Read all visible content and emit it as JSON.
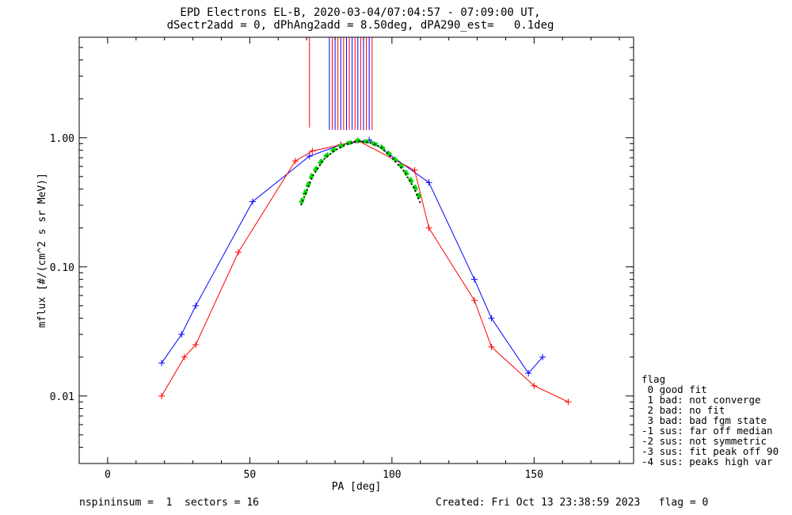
{
  "chart_data": {
    "type": "scatter",
    "title": "EPD Electrons EL-B, 2020-03-04/07:04:57 - 07:09:00 UT,",
    "subtitle": "dSectr2add = 0, dPhAng2add = 8.50deg, dPA290_est=   0.1deg",
    "xlabel": "PA [deg]",
    "ylabel": "mflux [#/(cm^2 s sr MeV)]",
    "xlim": [
      -10,
      185
    ],
    "ylim": [
      0.003,
      6.0
    ],
    "yscale": "log",
    "x_ticks": [
      0,
      50,
      100,
      150
    ],
    "x_tick_labels": [
      "0",
      "50",
      "100",
      "150"
    ],
    "y_ticks": [
      0.01,
      0.1,
      1.0
    ],
    "y_tick_labels": [
      "0.01",
      "0.10",
      "1.00"
    ],
    "grid": false,
    "legend_position": "bottom-right outside",
    "series": [
      {
        "color": "#0000ff",
        "x": [
          19,
          26,
          31,
          51,
          71,
          82,
          92,
          113,
          129,
          135,
          148,
          153
        ],
        "y": [
          0.018,
          0.03,
          0.05,
          0.32,
          0.72,
          0.88,
          0.96,
          0.45,
          0.08,
          0.04,
          0.015,
          0.02
        ]
      },
      {
        "color": "#ff0000",
        "x": [
          19,
          27,
          31,
          46,
          66,
          72,
          82,
          88,
          108,
          113,
          129,
          135,
          150,
          162
        ],
        "y": [
          0.01,
          0.02,
          0.025,
          0.13,
          0.66,
          0.79,
          0.88,
          0.95,
          0.56,
          0.2,
          0.055,
          0.024,
          0.012,
          0.009
        ]
      }
    ],
    "fit_curves": [
      {
        "style": "green-dashed",
        "color": "#00dd00",
        "x": [
          68,
          72,
          76,
          80,
          84,
          88,
          92,
          96,
          100,
          104,
          108,
          110
        ],
        "y": [
          0.31,
          0.52,
          0.7,
          0.82,
          0.9,
          0.95,
          0.93,
          0.86,
          0.72,
          0.58,
          0.42,
          0.33
        ]
      },
      {
        "style": "black-dotted",
        "color": "#000000",
        "x": [
          68,
          72,
          76,
          80,
          84,
          88,
          92,
          96,
          100,
          104,
          108,
          110
        ],
        "y": [
          0.3,
          0.5,
          0.68,
          0.8,
          0.89,
          0.94,
          0.92,
          0.85,
          0.7,
          0.56,
          0.4,
          0.31
        ]
      }
    ],
    "spikes": {
      "color": "#0000ff",
      "x_from": 78,
      "x_to": 93,
      "y_from": 1.15
    }
  },
  "legend": {
    "title": "flag",
    "items": [
      " 0 good fit",
      " 1 bad: not converge",
      " 2 bad: no fit",
      " 3 bad: bad fgm state",
      "-1 sus: far off median",
      "-2 sus: not symmetric",
      "-3 sus: fit peak off 90",
      "-4 sus: peaks high var"
    ]
  },
  "footer": {
    "left": "nspininsum =  1  sectors = 16",
    "right": "Created: Fri Oct 13 23:38:59 2023   flag = 0"
  }
}
